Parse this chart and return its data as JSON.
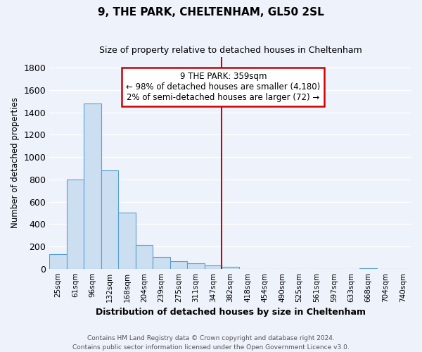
{
  "title": "9, THE PARK, CHELTENHAM, GL50 2SL",
  "subtitle": "Size of property relative to detached houses in Cheltenham",
  "xlabel": "Distribution of detached houses by size in Cheltenham",
  "ylabel": "Number of detached properties",
  "bar_labels": [
    "25sqm",
    "61sqm",
    "96sqm",
    "132sqm",
    "168sqm",
    "204sqm",
    "239sqm",
    "275sqm",
    "311sqm",
    "347sqm",
    "382sqm",
    "418sqm",
    "454sqm",
    "490sqm",
    "525sqm",
    "561sqm",
    "597sqm",
    "633sqm",
    "668sqm",
    "704sqm",
    "740sqm"
  ],
  "bar_values": [
    130,
    800,
    1480,
    880,
    500,
    210,
    105,
    65,
    50,
    30,
    20,
    0,
    0,
    0,
    0,
    0,
    0,
    0,
    5,
    0,
    0
  ],
  "bar_color": "#ccdff0",
  "bar_edge_color": "#5a9fd4",
  "vline_x_index": 9,
  "vline_color": "#cc0000",
  "ylim": [
    0,
    1900
  ],
  "yticks": [
    0,
    200,
    400,
    600,
    800,
    1000,
    1200,
    1400,
    1600,
    1800
  ],
  "annotation_title": "9 THE PARK: 359sqm",
  "annotation_line1": "← 98% of detached houses are smaller (4,180)",
  "annotation_line2": "2% of semi-detached houses are larger (72) →",
  "annotation_box_color": "#ffffff",
  "annotation_box_border": "#cc0000",
  "footer_line1": "Contains HM Land Registry data © Crown copyright and database right 2024.",
  "footer_line2": "Contains public sector information licensed under the Open Government Licence v3.0.",
  "background_color": "#eef2fb",
  "grid_color": "#ffffff"
}
